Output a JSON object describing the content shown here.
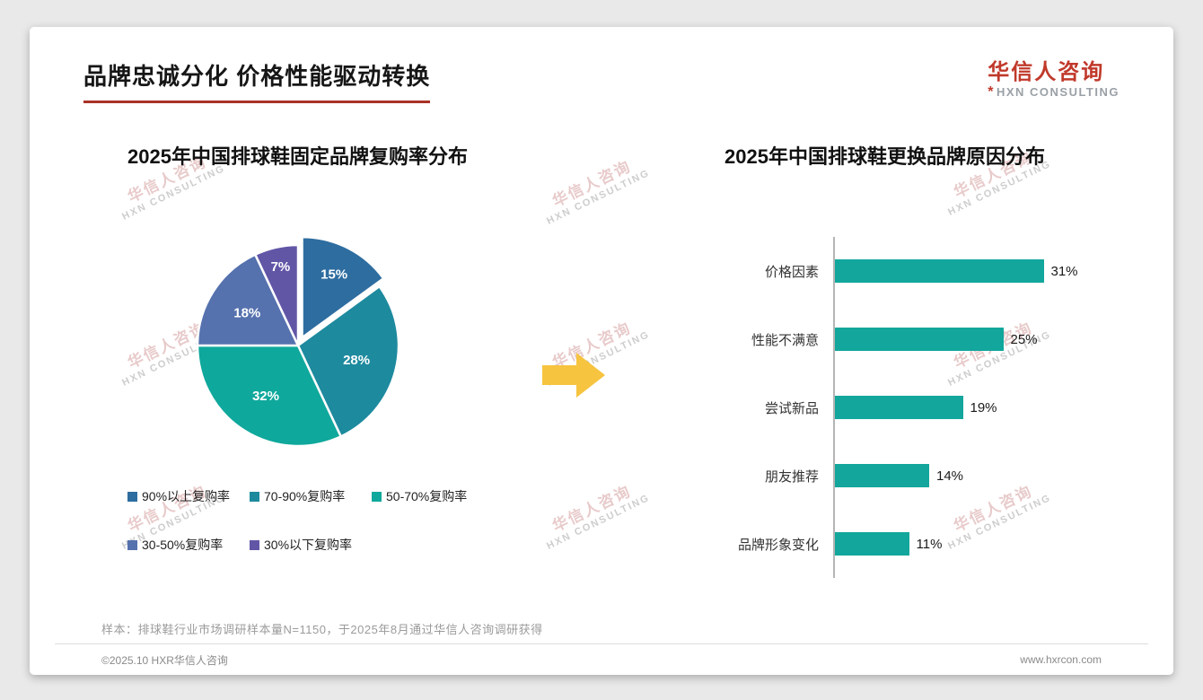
{
  "page": {
    "title": "品牌忠诚分化 价格性能驱动转换",
    "logo": {
      "name": "华信人咨询",
      "mark": "*",
      "sub": "HXN CONSULTING"
    },
    "watermark": {
      "line1": "华信人咨询",
      "line2": "HXN CONSULTING"
    },
    "arrow_color": "#F7C440",
    "accent_red": "#A93226",
    "sample_note": "样本：排球鞋行业市场调研样本量N=1150，于2025年8月通过华信人咨询调研获得",
    "footer": {
      "copyright": "©2025.10 HXR华信人咨询",
      "website": "www.hxrcon.com"
    }
  },
  "chart_data": [
    {
      "type": "pie",
      "title": "2025年中国排球鞋固定品牌复购率分布",
      "labels": [
        "90%以上复购率",
        "70-90%复购率",
        "50-70%复购率",
        "30-50%复购率",
        "30%以下复购率"
      ],
      "values": [
        15,
        28,
        32,
        18,
        7
      ],
      "value_labels": [
        "15%",
        "28%",
        "32%",
        "18%",
        "7%"
      ],
      "colors": [
        "#2E6DA0",
        "#1D8A9E",
        "#0FA89C",
        "#5571AE",
        "#6156A6"
      ],
      "legend_position": "bottom",
      "exploded_slice_index": 0
    },
    {
      "type": "bar",
      "orientation": "horizontal",
      "title": "2025年中国排球鞋更换品牌原因分布",
      "categories": [
        "价格因素",
        "性能不满意",
        "尝试新品",
        "朋友推荐",
        "品牌形象变化"
      ],
      "values": [
        31,
        25,
        19,
        14,
        11
      ],
      "value_labels": [
        "31%",
        "25%",
        "19%",
        "14%",
        "11%"
      ],
      "bar_color": "#12A69C",
      "xlim": [
        0,
        35
      ],
      "grid": false
    }
  ]
}
